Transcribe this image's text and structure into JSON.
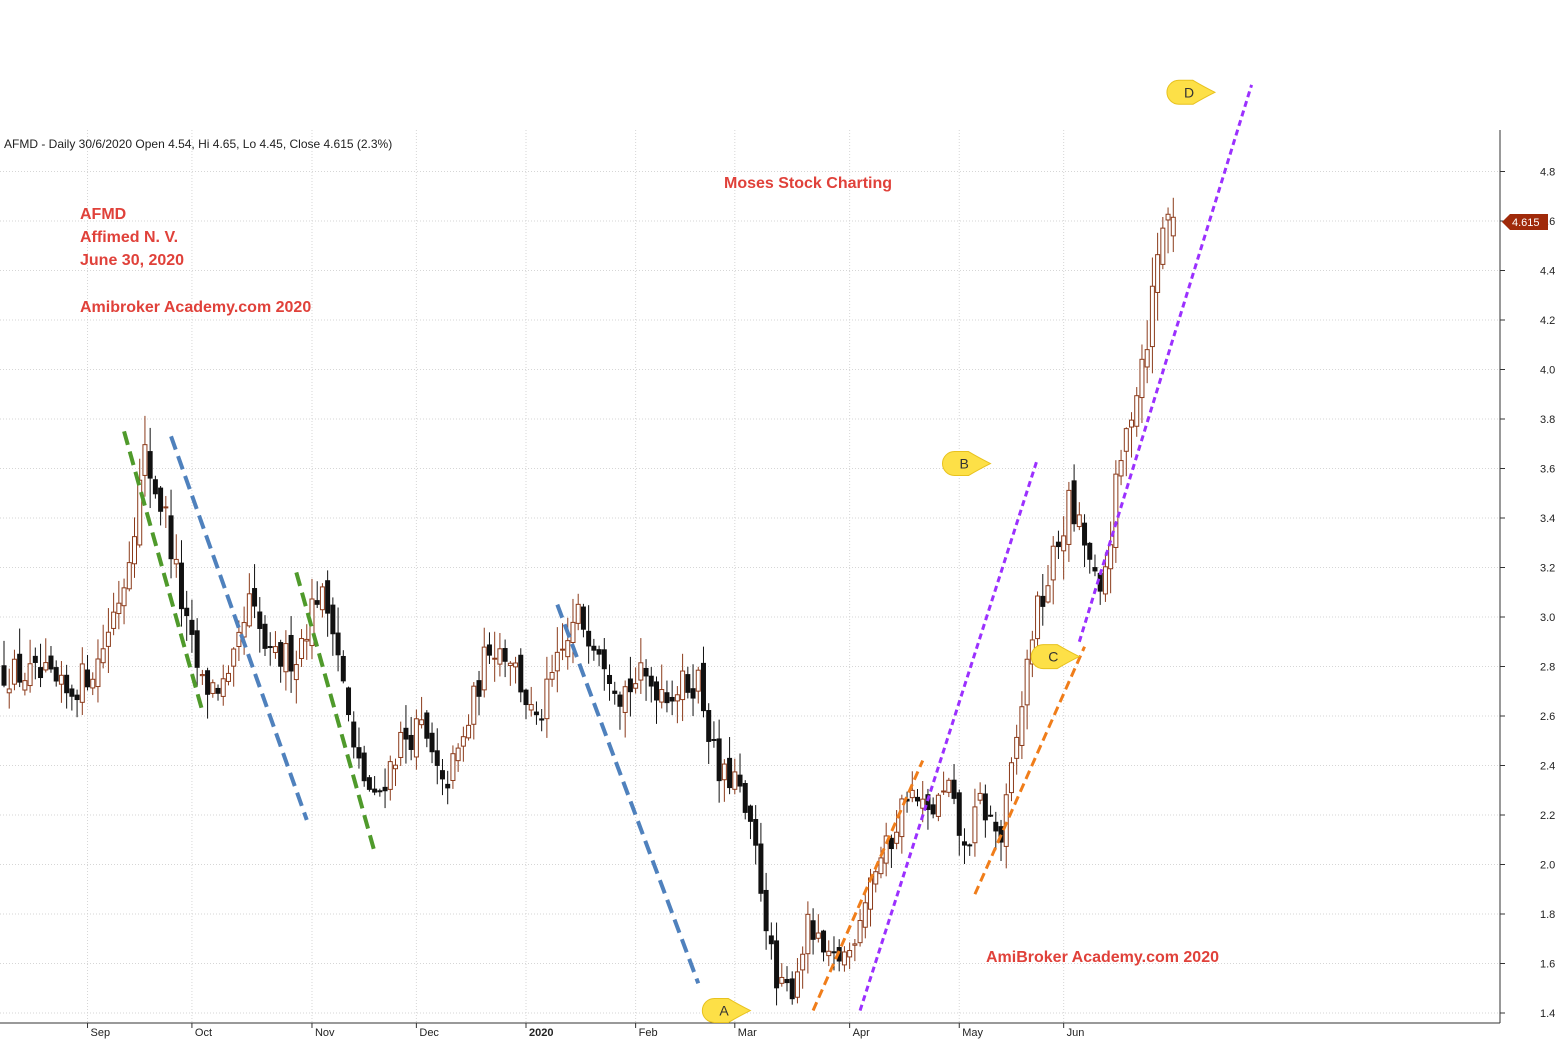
{
  "header": {
    "info_line": "AFMD - Daily 30/6/2020 Open 4.54, Hi 4.65, Lo 4.45, Close 4.615 (2.3%)"
  },
  "annotations": {
    "center_title": "Moses Stock Charting",
    "ticker": "AFMD",
    "company": "Affimed N. V.",
    "date": "June 30, 2020",
    "site_top": "Amibroker Academy.com  2020",
    "site_bottom": "AmiBroker Academy.com  2020"
  },
  "price_badge": {
    "value": "4.615",
    "color": "#a02a0a"
  },
  "colors": {
    "bull_candle": "#8b3a1a",
    "bear_candle": "#111111",
    "green_line": "#4f9a2b",
    "blue_line": "#4f81bd",
    "purple_line": "#9b30ff",
    "orange_line": "#f07d1a",
    "marker_fill": "#fde047",
    "text_red": "#e0413a"
  },
  "chart_data": {
    "type": "candlestick",
    "ylim": [
      1.35,
      4.92
    ],
    "y_ticks": [
      "1.4",
      "1.6",
      "1.8",
      "2.0",
      "2.2",
      "2.4",
      "2.6",
      "2.8",
      "3.0",
      "3.2",
      "3.4",
      "3.6",
      "3.8",
      "4.0",
      "4.2",
      "4.4",
      "4.6",
      "4.8"
    ],
    "x_months": [
      {
        "label": "Sep",
        "day": 16
      },
      {
        "label": "Oct",
        "day": 36
      },
      {
        "label": "Nov",
        "day": 59
      },
      {
        "label": "Dec",
        "day": 79
      },
      {
        "label": "2020",
        "day": 100
      },
      {
        "label": "Feb",
        "day": 121
      },
      {
        "label": "Mar",
        "day": 140
      },
      {
        "label": "Apr",
        "day": 162
      },
      {
        "label": "May",
        "day": 183
      },
      {
        "label": "Jun",
        "day": 203
      }
    ],
    "grid": "vertical-and-horizontal",
    "anchors": [
      {
        "day": 0,
        "close": 2.78
      },
      {
        "day": 8,
        "close": 2.75
      },
      {
        "day": 12,
        "close": 2.68
      },
      {
        "day": 18,
        "close": 2.82
      },
      {
        "day": 23,
        "close": 3.15
      },
      {
        "day": 27,
        "close": 3.65
      },
      {
        "day": 31,
        "close": 3.4
      },
      {
        "day": 35,
        "close": 2.95
      },
      {
        "day": 38,
        "close": 2.72
      },
      {
        "day": 43,
        "close": 2.72
      },
      {
        "day": 47,
        "close": 3.05
      },
      {
        "day": 51,
        "close": 2.82
      },
      {
        "day": 56,
        "close": 2.85
      },
      {
        "day": 60,
        "close": 3.1
      },
      {
        "day": 63,
        "close": 3.0
      },
      {
        "day": 67,
        "close": 2.45
      },
      {
        "day": 71,
        "close": 2.25
      },
      {
        "day": 76,
        "close": 2.5
      },
      {
        "day": 80,
        "close": 2.55
      },
      {
        "day": 84,
        "close": 2.3
      },
      {
        "day": 88,
        "close": 2.5
      },
      {
        "day": 93,
        "close": 2.9
      },
      {
        "day": 97,
        "close": 2.85
      },
      {
        "day": 102,
        "close": 2.55
      },
      {
        "day": 105,
        "close": 2.75
      },
      {
        "day": 110,
        "close": 3.0
      },
      {
        "day": 114,
        "close": 2.9
      },
      {
        "day": 118,
        "close": 2.7
      },
      {
        "day": 122,
        "close": 2.75
      },
      {
        "day": 128,
        "close": 2.7
      },
      {
        "day": 133,
        "close": 2.75
      },
      {
        "day": 137,
        "close": 2.35
      },
      {
        "day": 140,
        "close": 2.35
      },
      {
        "day": 144,
        "close": 2.05
      },
      {
        "day": 148,
        "close": 1.5
      },
      {
        "day": 151,
        "close": 1.5
      },
      {
        "day": 154,
        "close": 1.75
      },
      {
        "day": 158,
        "close": 1.6
      },
      {
        "day": 162,
        "close": 1.65
      },
      {
        "day": 166,
        "close": 1.95
      },
      {
        "day": 170,
        "close": 2.1
      },
      {
        "day": 173,
        "close": 2.3
      },
      {
        "day": 177,
        "close": 2.2
      },
      {
        "day": 181,
        "close": 2.3
      },
      {
        "day": 184,
        "close": 2.05
      },
      {
        "day": 187,
        "close": 2.25
      },
      {
        "day": 191,
        "close": 2.1
      },
      {
        "day": 194,
        "close": 2.5
      },
      {
        "day": 197,
        "close": 2.95
      },
      {
        "day": 200,
        "close": 3.15
      },
      {
        "day": 204,
        "close": 3.45
      },
      {
        "day": 207,
        "close": 3.3
      },
      {
        "day": 210,
        "close": 3.05
      },
      {
        "day": 213,
        "close": 3.5
      },
      {
        "day": 216,
        "close": 3.85
      },
      {
        "day": 219,
        "close": 4.15
      },
      {
        "day": 222,
        "close": 4.6
      },
      {
        "day": 224,
        "close": 4.615
      }
    ],
    "trend_lines": [
      {
        "name": "green-1",
        "color": "green_line",
        "style": "long-dash",
        "from": [
          23,
          3.75
        ],
        "to": [
          38,
          2.62
        ]
      },
      {
        "name": "green-2",
        "color": "green_line",
        "style": "long-dash",
        "from": [
          56,
          3.18
        ],
        "to": [
          71,
          2.05
        ]
      },
      {
        "name": "blue-1",
        "color": "blue_line",
        "style": "long-dash",
        "from": [
          32,
          3.73
        ],
        "to": [
          58,
          2.18
        ]
      },
      {
        "name": "blue-2",
        "color": "blue_line",
        "style": "long-dash",
        "from": [
          106,
          3.05
        ],
        "to": [
          133,
          1.52
        ]
      },
      {
        "name": "orange-1",
        "color": "orange_line",
        "style": "dash",
        "from": [
          155,
          1.41
        ],
        "to": [
          176,
          2.42
        ]
      },
      {
        "name": "orange-2",
        "color": "orange_line",
        "style": "dash",
        "from": [
          186,
          1.88
        ],
        "to": [
          207,
          2.88
        ]
      },
      {
        "name": "purple-1",
        "color": "purple_line",
        "style": "short-dash",
        "from": [
          164,
          1.41
        ],
        "to": [
          198,
          3.64
        ]
      },
      {
        "name": "purple-2",
        "color": "purple_line",
        "style": "short-dash",
        "from": [
          206,
          2.9
        ],
        "to": [
          239,
          5.15
        ]
      }
    ],
    "markers": [
      {
        "label": "A",
        "day": 138,
        "price": 1.41
      },
      {
        "label": "B",
        "day": 184,
        "price": 3.62
      },
      {
        "label": "C",
        "day": 201,
        "price": 2.84
      },
      {
        "label": "D",
        "day": 227,
        "price": 5.12
      }
    ]
  }
}
